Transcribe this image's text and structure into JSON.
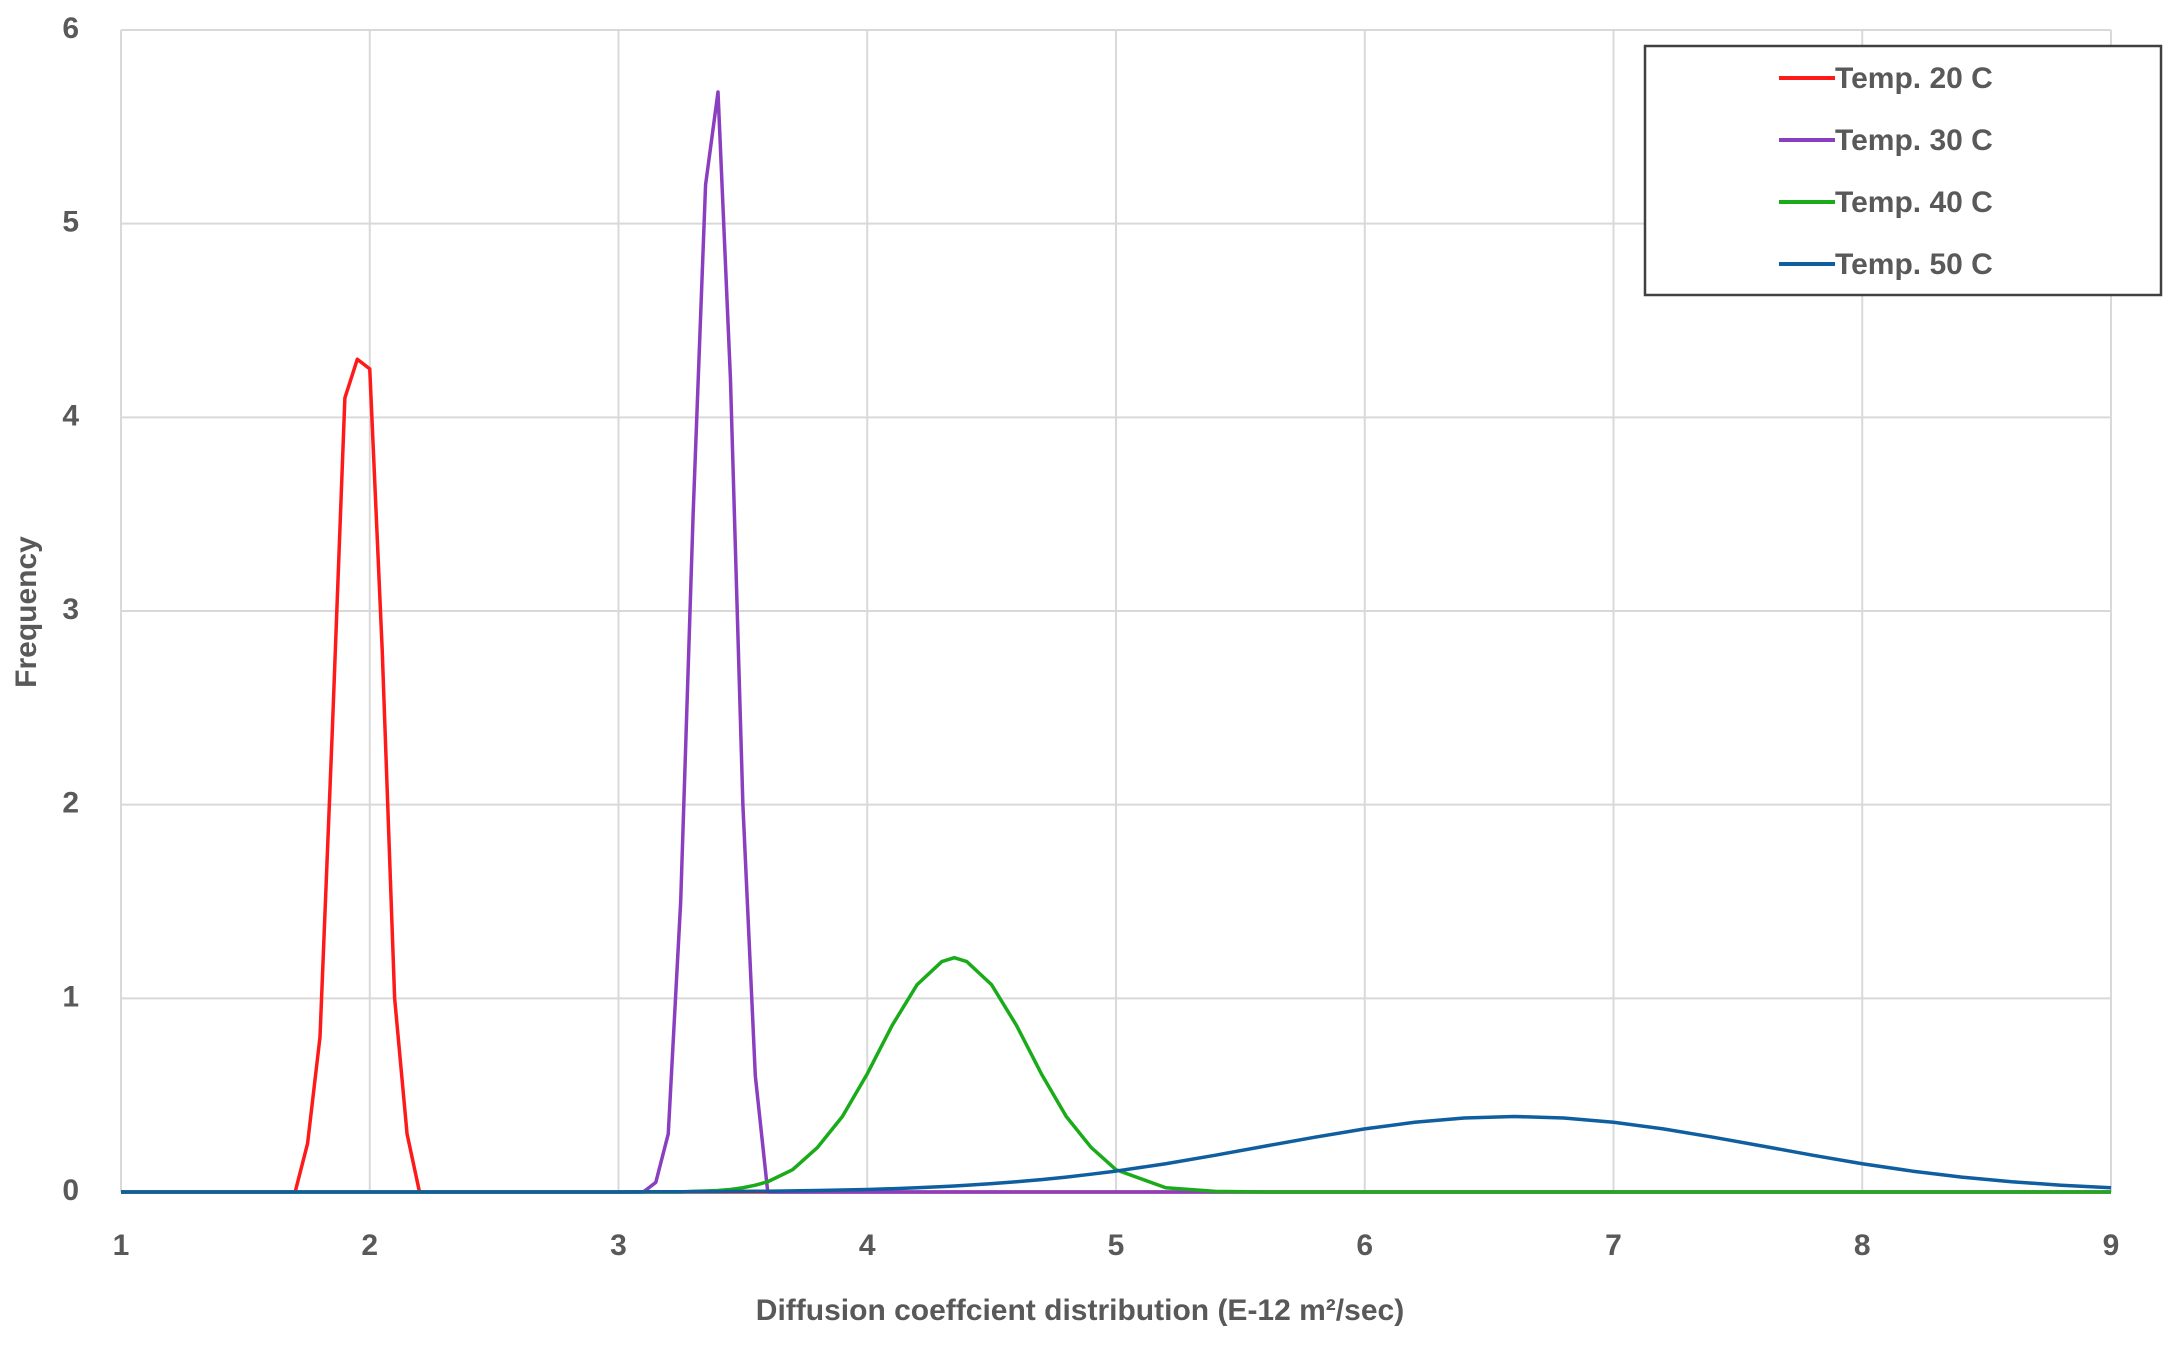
{
  "chart_data": {
    "type": "line",
    "x_label": "Diffusion coeffcient distribution (E-12 m²/sec)",
    "y_label": "Frequency",
    "x": [
      1,
      1.5,
      1.6,
      1.7,
      1.75,
      1.8,
      1.85,
      1.9,
      1.95,
      2.0,
      2.05,
      2.1,
      2.15,
      2.2,
      2.3,
      2.5,
      2.8,
      3.0,
      3.1,
      3.15,
      3.2,
      3.25,
      3.3,
      3.35,
      3.4,
      3.45,
      3.5,
      3.55,
      3.6,
      3.7,
      3.8,
      3.9,
      4.0,
      4.1,
      4.2,
      4.3,
      4.35,
      4.4,
      4.5,
      4.6,
      4.7,
      4.8,
      4.9,
      5.0,
      5.2,
      5.4,
      5.6,
      5.8,
      6.0,
      6.2,
      6.4,
      6.6,
      6.8,
      7.0,
      7.2,
      7.4,
      7.6,
      7.8,
      8.0,
      8.2,
      8.4,
      8.6,
      8.8,
      9.0
    ],
    "series": [
      {
        "name": "Temp. 20 C",
        "color": "#ff1a1a",
        "values": [
          0,
          0,
          0,
          0,
          0.25,
          0.8,
          2.4,
          4.1,
          4.3,
          4.25,
          2.8,
          1.0,
          0.3,
          0,
          0,
          0,
          0,
          0,
          0,
          0,
          0,
          0,
          0,
          0,
          0,
          0,
          0,
          0,
          0,
          0,
          0,
          0,
          0,
          0,
          0,
          0,
          0,
          0,
          0,
          0,
          0,
          0,
          0,
          0,
          0,
          0,
          0,
          0,
          0,
          0,
          0,
          0,
          0,
          0,
          0,
          0,
          0,
          0,
          0,
          0,
          0,
          0,
          0,
          0
        ]
      },
      {
        "name": "Temp. 30 C",
        "color": "#8a3fc0",
        "values": [
          0,
          0,
          0,
          0,
          0,
          0,
          0,
          0,
          0,
          0,
          0,
          0,
          0,
          0,
          0,
          0,
          0,
          0,
          0,
          0.05,
          0.3,
          1.5,
          3.5,
          5.2,
          5.68,
          4.2,
          2.0,
          0.6,
          0,
          0,
          0,
          0,
          0,
          0,
          0,
          0,
          0,
          0,
          0,
          0,
          0,
          0,
          0,
          0,
          0,
          0,
          0,
          0,
          0,
          0,
          0,
          0,
          0,
          0,
          0,
          0,
          0,
          0,
          0,
          0,
          0,
          0,
          0,
          0
        ]
      },
      {
        "name": "Temp. 40 C",
        "color": "#1aab1a",
        "values": [
          0,
          0,
          0,
          0,
          0,
          0,
          0,
          0,
          0,
          0,
          0,
          0,
          0,
          0,
          0,
          0,
          0,
          0,
          0,
          0,
          0,
          0,
          0.003,
          0.005,
          0.008,
          0.013,
          0.022,
          0.035,
          0.053,
          0.115,
          0.23,
          0.39,
          0.61,
          0.86,
          1.07,
          1.19,
          1.21,
          1.19,
          1.07,
          0.86,
          0.61,
          0.39,
          0.23,
          0.115,
          0.022,
          0.003,
          0,
          0,
          0,
          0,
          0,
          0,
          0,
          0,
          0,
          0,
          0,
          0,
          0,
          0,
          0,
          0,
          0,
          0
        ]
      },
      {
        "name": "Temp. 50 C",
        "color": "#0f5fa0",
        "values": [
          0,
          0,
          0,
          0,
          0,
          0,
          0,
          0,
          0,
          0,
          0,
          0,
          0,
          0,
          0,
          0,
          0,
          0,
          0.001,
          0.001,
          0.001,
          0.001,
          0.002,
          0.002,
          0.002,
          0.003,
          0.003,
          0.004,
          0.004,
          0.006,
          0.008,
          0.01,
          0.013,
          0.017,
          0.022,
          0.028,
          0.031,
          0.035,
          0.043,
          0.053,
          0.064,
          0.077,
          0.092,
          0.108,
          0.146,
          0.19,
          0.237,
          0.283,
          0.326,
          0.36,
          0.382,
          0.39,
          0.382,
          0.36,
          0.326,
          0.283,
          0.237,
          0.19,
          0.146,
          0.108,
          0.077,
          0.053,
          0.035,
          0.022
        ]
      }
    ],
    "xlim": [
      1,
      9
    ],
    "xticks": [
      1,
      2,
      3,
      4,
      5,
      6,
      7,
      8,
      9
    ],
    "ylim": [
      0,
      6
    ],
    "yticks": [
      0,
      1,
      2,
      3,
      4,
      5,
      6
    ],
    "grid": true,
    "legend": "upper right"
  }
}
